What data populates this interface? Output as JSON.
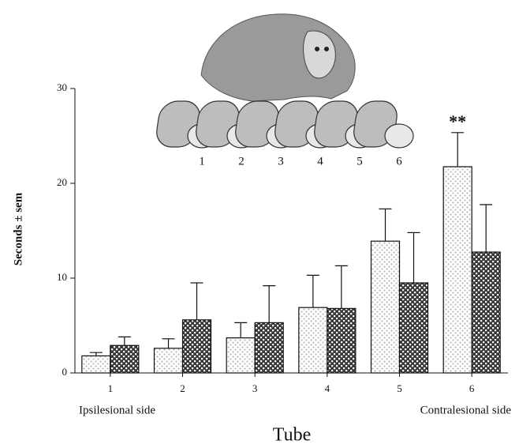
{
  "chart_data": {
    "type": "bar",
    "y_label": "Seconds ± sem",
    "x_label": "Tube",
    "categories": [
      "1",
      "2",
      "3",
      "4",
      "5",
      "6"
    ],
    "series": [
      {
        "color": "#b8b8b8",
        "values": [
          1.8,
          2.6,
          3.7,
          6.9,
          13.9,
          21.75
        ],
        "errors": [
          0.35,
          1.0,
          1.6,
          3.4,
          3.4,
          3.6
        ]
      },
      {
        "color": "#3a3a3a",
        "values": [
          2.9,
          5.6,
          5.3,
          6.8,
          9.5,
          12.75
        ],
        "errors": [
          0.9,
          3.9,
          3.9,
          4.5,
          5.3,
          5.0
        ]
      }
    ],
    "ylim": [
      0,
      30
    ],
    "yticks": [
      0,
      10,
      20,
      30
    ],
    "annotation": "**",
    "x_notes": [
      "Ipsilesional side",
      "Contralesional side"
    ]
  },
  "illustration": {
    "tube_labels": [
      "1",
      "2",
      "3",
      "4",
      "5",
      "6"
    ]
  }
}
